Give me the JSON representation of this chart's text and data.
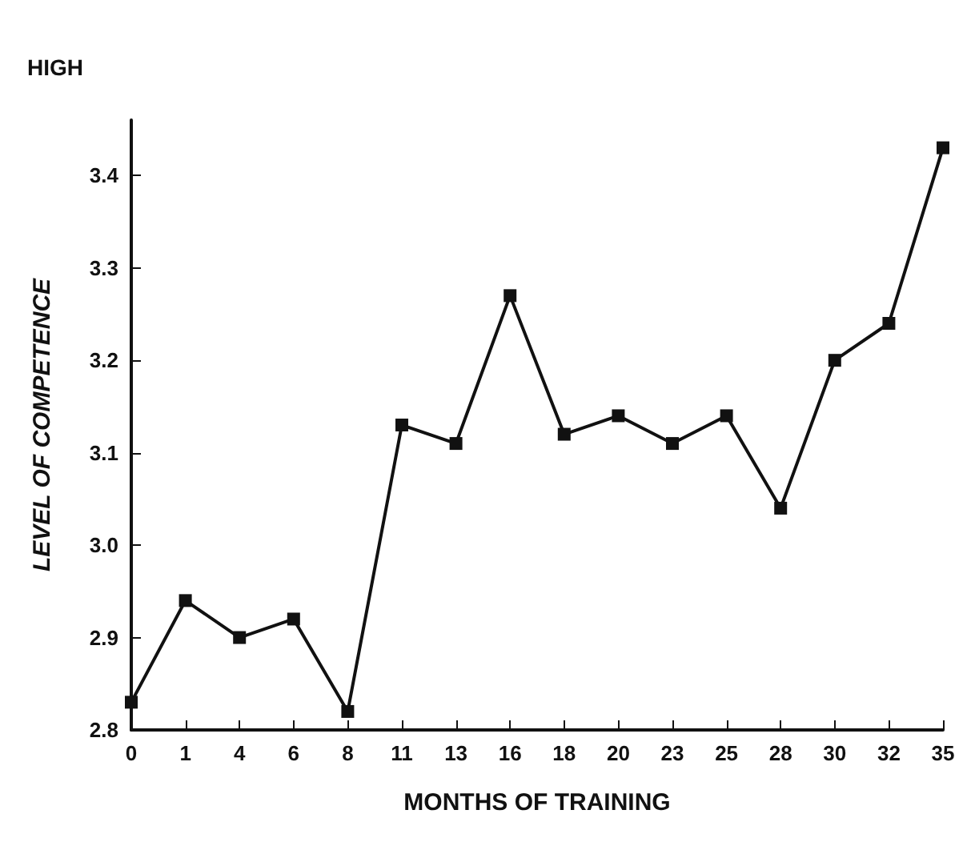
{
  "chart_data": {
    "type": "line",
    "title": "HIGH",
    "xlabel": "MONTHS OF TRAINING",
    "ylabel": "LEVEL OF COMPETENCE",
    "categories": [
      "0",
      "1",
      "4",
      "6",
      "8",
      "11",
      "13",
      "16",
      "18",
      "20",
      "23",
      "25",
      "28",
      "30",
      "32",
      "35"
    ],
    "series": [
      {
        "color": "#111111",
        "values": [
          2.83,
          2.94,
          2.9,
          2.92,
          2.82,
          3.13,
          3.11,
          3.27,
          3.12,
          3.14,
          3.11,
          3.14,
          3.04,
          3.2,
          3.24,
          3.43
        ]
      }
    ],
    "ylim": [
      2.8,
      3.46
    ],
    "yticks": [
      {
        "value": 2.8,
        "label": "2.8"
      },
      {
        "value": 2.9,
        "label": "2.9"
      },
      {
        "value": 3.0,
        "label": "3.0"
      },
      {
        "value": 3.1,
        "label": "3.1"
      },
      {
        "value": 3.2,
        "label": "3.2"
      },
      {
        "value": 3.3,
        "label": "3.3"
      },
      {
        "value": 3.4,
        "label": "3.4"
      }
    ],
    "grid": false,
    "marker": "square",
    "line_style": "solid"
  }
}
